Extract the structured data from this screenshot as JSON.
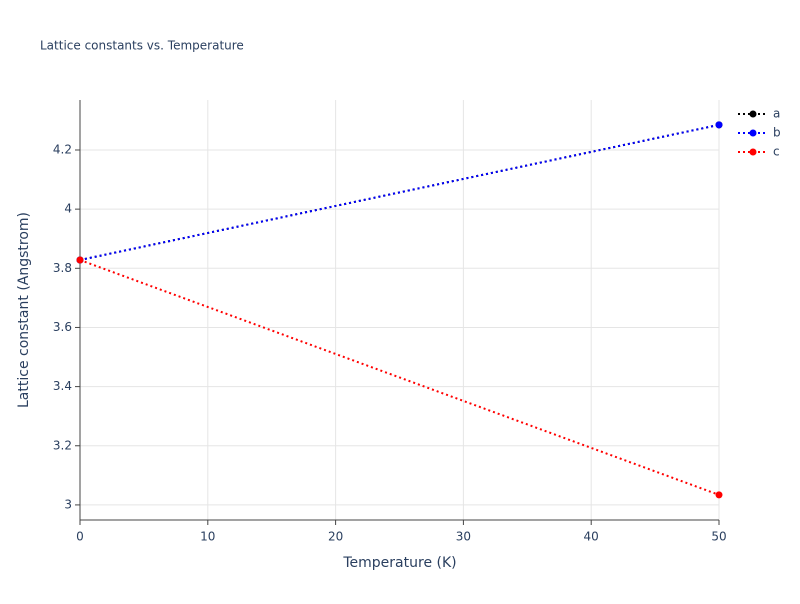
{
  "chart_data": {
    "type": "line",
    "title": "Lattice constants vs. Temperature",
    "x_label": "Temperature (K)",
    "y_label": "Lattice constant (Angstrom)",
    "x": [
      0,
      50
    ],
    "series": [
      {
        "name": "a",
        "color": "#000000",
        "values": [
          3.828,
          4.285
        ]
      },
      {
        "name": "b",
        "color": "#0000ff",
        "values": [
          3.828,
          4.285
        ]
      },
      {
        "name": "c",
        "color": "#ff0000",
        "values": [
          3.828,
          3.034
        ]
      }
    ],
    "xlim": [
      0,
      50
    ],
    "xticks": [
      0,
      10,
      20,
      30,
      40,
      50
    ],
    "ylim": [
      2.949,
      4.369
    ],
    "yticks": [
      3,
      3.2,
      3.4,
      3.6,
      3.8,
      4,
      4.2
    ],
    "grid": true,
    "legend": "right"
  }
}
